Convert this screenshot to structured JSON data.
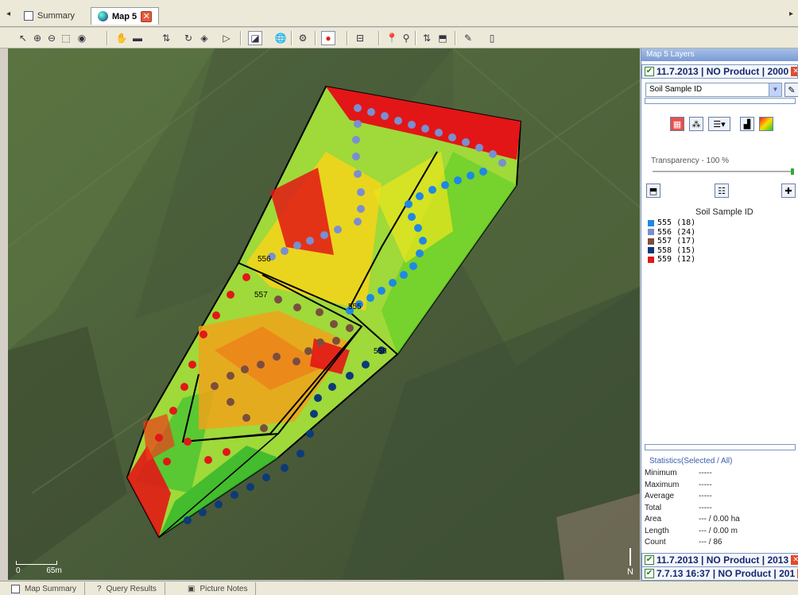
{
  "tabs": [
    {
      "label": "Summary",
      "icon": "document-icon"
    },
    {
      "label": "Map 5",
      "icon": "globe-icon"
    }
  ],
  "map": {
    "labels": [
      "556",
      "557",
      "555",
      "558"
    ],
    "scale_start": "0",
    "scale_end": "65m",
    "north": "N"
  },
  "panel": {
    "title": "Map 5 Layers",
    "layer_top": "11.7.2013 | NO Product | 2000",
    "select_value": "Soil Sample ID",
    "transparency": "Transparency - 100 %",
    "legend_title": "Soil Sample ID",
    "legend": [
      {
        "label": "555  (18)",
        "color": "#1e88e5"
      },
      {
        "label": "556  (24)",
        "color": "#7b8ed0"
      },
      {
        "label": "557  (17)",
        "color": "#7a4e3e"
      },
      {
        "label": "558  (15)",
        "color": "#0d3a78"
      },
      {
        "label": "559  (12)",
        "color": "#e01818"
      }
    ],
    "stats_title": "Statistics(Selected / All)",
    "stats": [
      {
        "k": "Minimum",
        "v": "-----"
      },
      {
        "k": "Maximum",
        "v": "-----"
      },
      {
        "k": "Average",
        "v": "-----"
      },
      {
        "k": "Total",
        "v": "-----"
      },
      {
        "k": "Area",
        "v": "--- / 0.00 ha"
      },
      {
        "k": "Length",
        "v": "--- / 0.00 m"
      },
      {
        "k": "Count",
        "v": "--- / 86"
      }
    ],
    "layer_bottom_1": "11.7.2013 | NO Product | 2013",
    "layer_bottom_2": "7.7.13 16:37 | NO Product | 201"
  },
  "bottom_tabs": [
    {
      "label": "Map Summary"
    },
    {
      "label": "Query Results"
    },
    {
      "label": "Picture Notes"
    }
  ]
}
